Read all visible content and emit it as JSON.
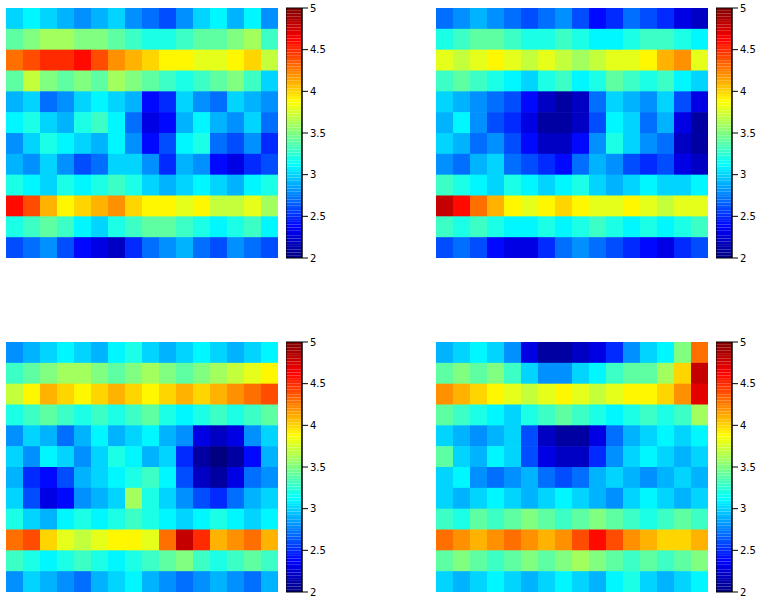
{
  "chart_data": [
    {
      "type": "heatmap",
      "tick_labels": false,
      "colorbar_range": [
        2,
        5
      ],
      "colorbar_ticks": [
        2,
        2.5,
        3,
        3.5,
        4,
        4.5,
        5
      ],
      "cells": [
        [
          3.0,
          3.1,
          3.0,
          2.9,
          2.8,
          2.9,
          3.0,
          2.8,
          2.7,
          2.6,
          2.8,
          3.0,
          3.1,
          2.9,
          3.1,
          2.8
        ],
        [
          3.4,
          3.5,
          3.6,
          3.6,
          3.5,
          3.5,
          3.4,
          3.3,
          3.2,
          3.2,
          3.3,
          3.4,
          3.4,
          3.5,
          3.6,
          3.3
        ],
        [
          4.3,
          4.4,
          4.5,
          4.5,
          4.6,
          4.4,
          4.2,
          4.1,
          4.0,
          3.9,
          3.9,
          3.8,
          3.8,
          3.9,
          4.0,
          3.7
        ],
        [
          3.4,
          3.7,
          3.5,
          3.4,
          3.5,
          3.4,
          3.6,
          3.5,
          3.4,
          3.3,
          3.2,
          3.3,
          3.4,
          3.5,
          3.3,
          3.0
        ],
        [
          2.9,
          3.0,
          2.7,
          2.8,
          3.0,
          3.1,
          3.0,
          2.9,
          2.4,
          2.5,
          3.0,
          2.8,
          2.7,
          3.0,
          2.9,
          2.8
        ],
        [
          3.1,
          3.2,
          3.0,
          2.9,
          3.2,
          3.3,
          3.1,
          2.7,
          2.3,
          2.4,
          2.9,
          3.1,
          2.9,
          2.8,
          3.0,
          2.7
        ],
        [
          2.8,
          3.0,
          3.2,
          3.1,
          3.0,
          2.9,
          3.1,
          2.8,
          2.4,
          2.6,
          3.1,
          3.2,
          2.7,
          2.6,
          2.8,
          2.5
        ],
        [
          2.9,
          2.8,
          3.0,
          2.8,
          2.6,
          2.7,
          3.0,
          3.0,
          2.8,
          2.5,
          2.9,
          2.8,
          2.4,
          2.3,
          2.5,
          2.6
        ],
        [
          3.2,
          3.1,
          3.0,
          3.2,
          3.1,
          3.2,
          3.3,
          3.2,
          3.0,
          2.9,
          3.0,
          3.1,
          3.0,
          2.9,
          3.1,
          3.2
        ],
        [
          4.6,
          4.4,
          4.1,
          3.9,
          4.0,
          4.1,
          4.2,
          4.0,
          3.9,
          3.9,
          3.8,
          3.9,
          3.7,
          3.7,
          3.8,
          3.6
        ],
        [
          3.2,
          3.3,
          3.4,
          3.3,
          3.1,
          3.0,
          3.2,
          3.3,
          3.4,
          3.4,
          3.3,
          3.2,
          3.1,
          3.2,
          3.3,
          3.1
        ],
        [
          2.6,
          2.7,
          2.8,
          2.6,
          2.4,
          2.3,
          2.2,
          2.5,
          2.7,
          2.8,
          2.9,
          2.7,
          2.6,
          2.8,
          2.7,
          2.6
        ]
      ]
    },
    {
      "type": "heatmap",
      "tick_labels": false,
      "colorbar_range": [
        2,
        5
      ],
      "colorbar_ticks": [
        2,
        2.5,
        3,
        3.5,
        4,
        4.5,
        5
      ],
      "cells": [
        [
          2.7,
          2.8,
          2.9,
          2.8,
          2.7,
          2.6,
          2.7,
          2.8,
          2.6,
          2.4,
          2.5,
          2.7,
          2.6,
          2.5,
          2.3,
          2.2
        ],
        [
          3.2,
          3.3,
          3.4,
          3.4,
          3.3,
          3.2,
          3.2,
          3.3,
          3.2,
          3.1,
          3.1,
          3.2,
          3.3,
          3.3,
          3.2,
          3.1
        ],
        [
          3.8,
          3.7,
          3.8,
          3.9,
          3.8,
          3.7,
          3.8,
          3.7,
          3.6,
          3.7,
          3.8,
          3.8,
          3.9,
          4.1,
          4.2,
          3.8
        ],
        [
          3.3,
          3.4,
          3.3,
          3.2,
          3.1,
          3.0,
          3.2,
          3.3,
          3.1,
          3.2,
          3.4,
          3.3,
          3.2,
          3.3,
          3.1,
          3.0
        ],
        [
          3.0,
          2.9,
          2.8,
          2.7,
          2.6,
          2.4,
          2.2,
          2.1,
          2.2,
          2.7,
          3.0,
          2.9,
          2.8,
          3.0,
          2.6,
          2.3
        ],
        [
          2.9,
          3.1,
          2.8,
          2.6,
          2.5,
          2.3,
          2.1,
          2.1,
          2.2,
          2.6,
          3.1,
          3.0,
          2.7,
          2.9,
          2.3,
          2.1
        ],
        [
          3.0,
          2.9,
          2.7,
          2.8,
          2.6,
          2.4,
          2.2,
          2.2,
          2.4,
          2.8,
          3.2,
          3.0,
          2.8,
          2.7,
          2.2,
          2.1
        ],
        [
          2.8,
          2.7,
          2.9,
          3.0,
          2.7,
          2.6,
          2.5,
          2.4,
          2.7,
          2.9,
          2.8,
          2.6,
          2.5,
          2.6,
          2.3,
          2.2
        ],
        [
          3.3,
          3.2,
          3.1,
          3.0,
          3.2,
          3.1,
          3.0,
          3.1,
          3.2,
          3.0,
          2.9,
          3.0,
          3.1,
          3.0,
          3.0,
          3.1
        ],
        [
          4.8,
          4.6,
          4.3,
          4.1,
          3.9,
          3.8,
          3.9,
          4.0,
          3.9,
          3.8,
          3.8,
          3.9,
          3.8,
          3.7,
          3.8,
          3.8
        ],
        [
          3.3,
          3.2,
          3.3,
          3.2,
          3.1,
          3.1,
          3.2,
          3.1,
          3.2,
          3.3,
          3.2,
          3.1,
          3.2,
          3.1,
          3.2,
          3.3
        ],
        [
          2.6,
          2.7,
          2.6,
          2.4,
          2.3,
          2.3,
          2.5,
          2.7,
          2.8,
          2.7,
          2.6,
          2.5,
          2.4,
          2.3,
          2.5,
          2.6
        ]
      ]
    },
    {
      "type": "heatmap",
      "tick_labels": false,
      "colorbar_range": [
        2,
        5
      ],
      "colorbar_ticks": [
        2,
        2.5,
        3,
        3.5,
        4,
        4.5,
        5
      ],
      "cells": [
        [
          2.8,
          2.9,
          3.0,
          3.1,
          3.0,
          2.9,
          3.1,
          3.2,
          3.0,
          2.9,
          3.0,
          3.1,
          3.0,
          2.9,
          3.0,
          3.1
        ],
        [
          3.3,
          3.4,
          3.5,
          3.6,
          3.6,
          3.5,
          3.4,
          3.5,
          3.6,
          3.5,
          3.4,
          3.5,
          3.6,
          3.7,
          3.8,
          3.9
        ],
        [
          3.7,
          3.9,
          4.1,
          4.0,
          3.9,
          4.0,
          4.1,
          4.0,
          3.9,
          4.0,
          4.1,
          4.0,
          4.1,
          4.2,
          4.3,
          4.4
        ],
        [
          3.2,
          3.3,
          3.4,
          3.3,
          3.2,
          3.3,
          3.2,
          3.3,
          3.4,
          3.2,
          3.1,
          3.2,
          3.3,
          3.2,
          3.3,
          3.4
        ],
        [
          2.8,
          3.0,
          2.9,
          2.7,
          2.9,
          3.1,
          2.9,
          3.0,
          3.1,
          2.9,
          2.8,
          2.3,
          2.2,
          2.3,
          2.8,
          3.0
        ],
        [
          3.0,
          2.8,
          3.1,
          3.0,
          2.8,
          3.0,
          3.2,
          3.1,
          2.9,
          3.0,
          2.5,
          2.1,
          2.0,
          2.1,
          2.4,
          2.9
        ],
        [
          2.9,
          2.5,
          2.4,
          2.6,
          2.9,
          3.0,
          3.1,
          3.2,
          3.3,
          3.1,
          2.6,
          2.2,
          2.1,
          2.3,
          2.7,
          2.8
        ],
        [
          3.0,
          2.6,
          2.3,
          2.4,
          2.8,
          2.9,
          3.0,
          3.6,
          3.2,
          3.0,
          2.8,
          2.6,
          2.5,
          2.7,
          2.9,
          3.0
        ],
        [
          3.2,
          3.0,
          2.9,
          3.1,
          3.2,
          3.1,
          3.2,
          3.3,
          3.2,
          3.1,
          3.0,
          3.1,
          3.2,
          3.1,
          3.0,
          3.1
        ],
        [
          4.3,
          4.4,
          4.0,
          3.8,
          3.7,
          3.8,
          3.9,
          3.9,
          3.8,
          4.3,
          4.8,
          4.5,
          4.1,
          4.2,
          4.3,
          4.1
        ],
        [
          3.3,
          3.2,
          3.1,
          3.2,
          3.3,
          3.2,
          3.1,
          3.2,
          3.3,
          3.4,
          3.5,
          3.3,
          3.2,
          3.3,
          3.4,
          3.3
        ],
        [
          2.8,
          3.0,
          2.9,
          2.8,
          2.7,
          2.9,
          3.0,
          3.1,
          2.9,
          2.8,
          2.7,
          2.8,
          2.9,
          2.8,
          2.7,
          2.9
        ]
      ]
    },
    {
      "type": "heatmap",
      "tick_labels": false,
      "colorbar_range": [
        2,
        5
      ],
      "colorbar_ticks": [
        2,
        2.5,
        3,
        3.5,
        4,
        4.5,
        5
      ],
      "cells": [
        [
          2.9,
          3.0,
          3.1,
          3.0,
          2.8,
          2.3,
          2.1,
          2.1,
          2.2,
          2.3,
          2.5,
          2.8,
          3.0,
          3.1,
          3.5,
          4.3
        ],
        [
          3.4,
          3.5,
          3.4,
          3.5,
          3.3,
          3.0,
          2.8,
          2.8,
          3.0,
          3.1,
          3.3,
          3.4,
          3.4,
          3.6,
          4.0,
          4.8
        ],
        [
          4.2,
          4.1,
          4.0,
          3.9,
          3.8,
          3.7,
          3.8,
          3.9,
          3.8,
          3.7,
          3.8,
          3.9,
          3.9,
          4.0,
          4.2,
          4.7
        ],
        [
          3.4,
          3.3,
          3.2,
          3.1,
          3.0,
          3.2,
          3.3,
          3.4,
          3.3,
          3.2,
          3.1,
          3.2,
          3.3,
          3.2,
          3.3,
          3.6
        ],
        [
          3.0,
          2.9,
          2.8,
          2.9,
          3.0,
          2.6,
          2.2,
          2.1,
          2.1,
          2.3,
          2.7,
          2.9,
          3.0,
          3.1,
          3.0,
          3.1
        ],
        [
          3.4,
          3.0,
          2.9,
          3.1,
          3.0,
          2.6,
          2.3,
          2.2,
          2.2,
          2.5,
          2.8,
          3.0,
          3.1,
          3.0,
          2.9,
          3.0
        ],
        [
          3.0,
          3.1,
          2.8,
          2.7,
          2.8,
          2.9,
          2.7,
          2.6,
          2.7,
          2.9,
          3.0,
          2.9,
          2.8,
          2.9,
          3.0,
          2.9
        ],
        [
          3.0,
          2.9,
          3.0,
          3.1,
          3.0,
          2.9,
          3.0,
          3.1,
          3.0,
          2.9,
          2.8,
          3.0,
          3.1,
          3.0,
          2.9,
          3.0
        ],
        [
          3.3,
          3.2,
          3.4,
          3.3,
          3.4,
          3.5,
          3.4,
          3.3,
          3.4,
          3.5,
          3.4,
          3.3,
          3.2,
          3.3,
          3.4,
          3.3
        ],
        [
          4.3,
          4.2,
          4.1,
          4.2,
          4.3,
          4.2,
          4.1,
          4.2,
          4.4,
          4.6,
          4.4,
          4.2,
          4.1,
          4.0,
          4.0,
          4.1
        ],
        [
          3.4,
          3.5,
          3.4,
          3.3,
          3.4,
          3.5,
          3.4,
          3.5,
          3.6,
          3.5,
          3.4,
          3.3,
          3.4,
          3.3,
          3.4,
          3.5
        ],
        [
          3.0,
          2.9,
          3.0,
          3.1,
          3.0,
          2.9,
          3.0,
          3.1,
          3.0,
          2.9,
          3.1,
          3.2,
          3.0,
          2.9,
          3.0,
          3.1
        ]
      ]
    }
  ]
}
